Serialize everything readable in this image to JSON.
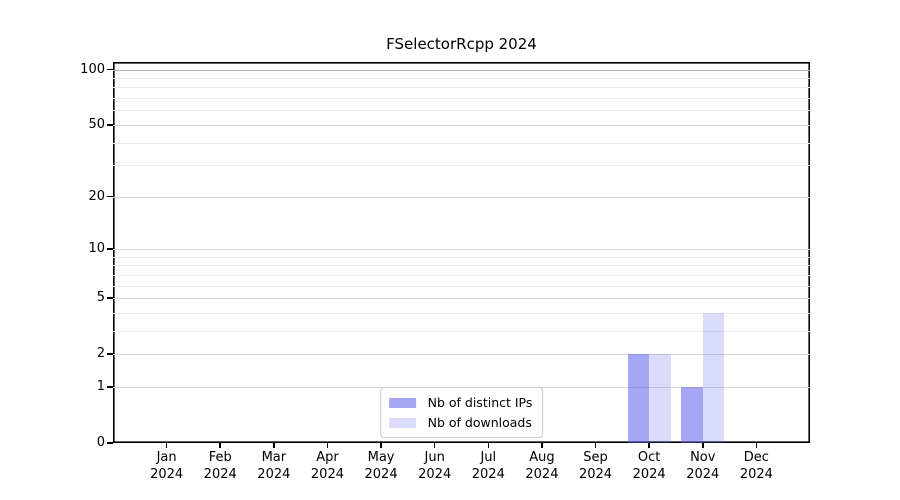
{
  "chart_data": {
    "type": "bar",
    "title": "FSelectorRcpp 2024",
    "categories": [
      "Jan",
      "Feb",
      "Mar",
      "Apr",
      "May",
      "Jun",
      "Jul",
      "Aug",
      "Sep",
      "Oct",
      "Nov",
      "Dec"
    ],
    "xtick_year": "2024",
    "series": [
      {
        "name": "Nb of distinct IPs",
        "color": "rgba(85,85,238,0.52)",
        "values": [
          0,
          0,
          0,
          0,
          0,
          0,
          0,
          0,
          0,
          2,
          1,
          0
        ]
      },
      {
        "name": "Nb of downloads",
        "color": "rgba(85,85,238,0.21)",
        "values": [
          0,
          0,
          0,
          0,
          0,
          0,
          0,
          0,
          0,
          2,
          4,
          0
        ]
      }
    ],
    "yscale": "log1p",
    "ylim": [
      0,
      110
    ],
    "yticks": [
      0,
      1,
      2,
      5,
      10,
      20,
      50,
      100
    ],
    "ygrid_minor": [
      3,
      4,
      6,
      7,
      8,
      9,
      30,
      40,
      60,
      70,
      80,
      90
    ],
    "grid": true,
    "legend_position": "lower center",
    "colors": {
      "grid_minor": "#ececec",
      "grid_major": "#d8d8d8",
      "grid_top": "#b5b5b5",
      "axis": "#000000",
      "legend_border": "#cccccc",
      "background": "#ffffff"
    }
  }
}
